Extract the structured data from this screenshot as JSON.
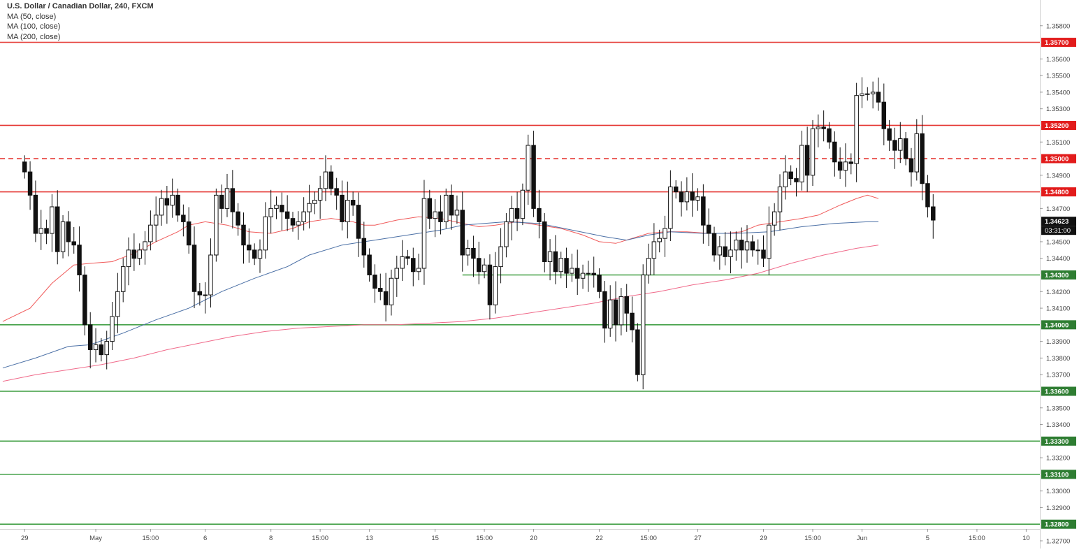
{
  "chart_data": {
    "type": "candlestick",
    "title": "U.S. Dollar / Canadian Dollar, 240, FXCM",
    "indicators": [
      {
        "label": "MA (50, close)",
        "color": "#f05a5a"
      },
      {
        "label": "MA (100, close)",
        "color": "#4a6fa5"
      },
      {
        "label": "MA (200, close)",
        "color": "#f06a8a"
      }
    ],
    "ylim": [
      1.327,
      1.359
    ],
    "y_ticks": [
      "1.35800",
      "1.35600",
      "1.35500",
      "1.35400",
      "1.35300",
      "1.35100",
      "1.34900",
      "1.34700",
      "1.34500",
      "1.34400",
      "1.34200",
      "1.34100",
      "1.33900",
      "1.33800",
      "1.33700",
      "1.33500",
      "1.33400",
      "1.33200",
      "1.33000",
      "1.32900",
      "1.32700"
    ],
    "y_tick_values": [
      1.358,
      1.356,
      1.355,
      1.354,
      1.353,
      1.351,
      1.349,
      1.347,
      1.345,
      1.344,
      1.342,
      1.341,
      1.339,
      1.338,
      1.337,
      1.335,
      1.334,
      1.332,
      1.33,
      1.329,
      1.327
    ],
    "x_ticks": [
      {
        "label": "29",
        "x": 0
      },
      {
        "label": "May",
        "x": 13
      },
      {
        "label": "15:00",
        "x": 23
      },
      {
        "label": "6",
        "x": 33
      },
      {
        "label": "8",
        "x": 45
      },
      {
        "label": "15:00",
        "x": 54
      },
      {
        "label": "13",
        "x": 63
      },
      {
        "label": "15",
        "x": 75
      },
      {
        "label": "15:00",
        "x": 84
      },
      {
        "label": "20",
        "x": 93
      },
      {
        "label": "22",
        "x": 105
      },
      {
        "label": "15:00",
        "x": 114
      },
      {
        "label": "27",
        "x": 123
      },
      {
        "label": "29",
        "x": 135
      },
      {
        "label": "15:00",
        "x": 144
      },
      {
        "label": "Jun",
        "x": 153
      },
      {
        "label": "5",
        "x": 165
      },
      {
        "label": "15:00",
        "x": 174
      },
      {
        "label": "10",
        "x": 183
      }
    ],
    "x_range": [
      -4.5,
      185.5
    ],
    "levels": [
      {
        "value": 1.357,
        "label": "1.35700",
        "color": "#e53935",
        "style": "solid"
      },
      {
        "value": 1.352,
        "label": "1.35200",
        "color": "#e53935",
        "style": "solid"
      },
      {
        "value": 1.35,
        "label": "1.35000",
        "color": "#e53935",
        "style": "dashed"
      },
      {
        "value": 1.348,
        "label": "1.34800",
        "color": "#e53935",
        "style": "solid"
      },
      {
        "value": 1.343,
        "label": "1.34300",
        "color": "#43a047",
        "style": "solid",
        "start_x": 80
      },
      {
        "value": 1.34,
        "label": "1.34000",
        "color": "#43a047",
        "style": "solid"
      },
      {
        "value": 1.336,
        "label": "1.33600",
        "color": "#43a047",
        "style": "solid"
      },
      {
        "value": 1.333,
        "label": "1.33300",
        "color": "#43a047",
        "style": "solid"
      },
      {
        "value": 1.331,
        "label": "1.33100",
        "color": "#43a047",
        "style": "solid"
      },
      {
        "value": 1.328,
        "label": "1.32800",
        "color": "#43a047",
        "style": "solid"
      }
    ],
    "last_price": {
      "value": 1.34623,
      "label": "1.34623",
      "countdown": "03:31:00"
    },
    "candles": [
      1.3492,
      1.3478,
      1.3455,
      1.3458,
      1.3455,
      1.3471,
      1.3444,
      1.3462,
      1.345,
      1.3448,
      1.343,
      1.34,
      1.3385,
      1.3388,
      1.3382,
      1.339,
      1.3405,
      1.342,
      1.3435,
      1.3445,
      1.344,
      1.3445,
      1.345,
      1.346,
      1.3466,
      1.3476,
      1.3472,
      1.3478,
      1.3466,
      1.3462,
      1.3448,
      1.342,
      1.3418,
      1.3418,
      1.3442,
      1.3478,
      1.347,
      1.3482,
      1.3468,
      1.346,
      1.3448,
      1.3445,
      1.344,
      1.3445,
      1.3465,
      1.347,
      1.3472,
      1.3468,
      1.3464,
      1.346,
      1.3462,
      1.3468,
      1.3473,
      1.3475,
      1.3482,
      1.3492,
      1.3482,
      1.3478,
      1.3462,
      1.3475,
      1.3472,
      1.3452,
      1.3442,
      1.343,
      1.3422,
      1.342,
      1.3412,
      1.3428,
      1.3434,
      1.3441,
      1.344,
      1.3432,
      1.3434,
      1.3476,
      1.3464,
      1.3468,
      1.3462,
      1.3478,
      1.3466,
      1.3469,
      1.3442,
      1.3446,
      1.344,
      1.3432,
      1.3436,
      1.3412,
      1.3435,
      1.3447,
      1.3462,
      1.347,
      1.3464,
      1.3481,
      1.3508,
      1.347,
      1.3462,
      1.3438,
      1.3444,
      1.3432,
      1.344,
      1.3431,
      1.3434,
      1.3428,
      1.3431,
      1.3431,
      1.343,
      1.342,
      1.3398,
      1.3415,
      1.34,
      1.3417,
      1.3407,
      1.3397,
      1.337,
      1.343,
      1.344,
      1.345,
      1.3452,
      1.3458,
      1.3483,
      1.348,
      1.3474,
      1.348,
      1.3475,
      1.3477,
      1.346,
      1.3455,
      1.3442,
      1.3447,
      1.3441,
      1.3445,
      1.3451,
      1.3445,
      1.345,
      1.3445,
      1.3445,
      1.344,
      1.346,
      1.3468,
      1.3483,
      1.3492,
      1.3488,
      1.3486,
      1.3508,
      1.349,
      1.3518,
      1.3519,
      1.3518,
      1.351,
      1.3498,
      1.3493,
      1.3498,
      1.3497,
      1.3538,
      1.3539,
      1.3539,
      1.354,
      1.3534,
      1.3518,
      1.3511,
      1.3505,
      1.3512,
      1.35,
      1.3492,
      1.3515,
      1.3485,
      1.3471,
      1.3463
    ],
    "ma_series": [
      {
        "name": "MA (50, close)",
        "color": "#f05a5a",
        "points": [
          [
            -4,
            1.3402
          ],
          [
            1,
            1.341
          ],
          [
            5,
            1.3425
          ],
          [
            9,
            1.3436
          ],
          [
            12,
            1.3437
          ],
          [
            16,
            1.3438
          ],
          [
            20,
            1.3443
          ],
          [
            24,
            1.345
          ],
          [
            28,
            1.3456
          ],
          [
            30,
            1.346
          ],
          [
            33,
            1.3462
          ],
          [
            37,
            1.346
          ],
          [
            41,
            1.3456
          ],
          [
            45,
            1.3455
          ],
          [
            49,
            1.3458
          ],
          [
            52,
            1.3462
          ],
          [
            56,
            1.3464
          ],
          [
            60,
            1.3462
          ],
          [
            62,
            1.346
          ],
          [
            64,
            1.346
          ],
          [
            68,
            1.3463
          ],
          [
            72,
            1.3465
          ],
          [
            76,
            1.3464
          ],
          [
            80,
            1.3461
          ],
          [
            83,
            1.3459
          ],
          [
            86,
            1.346
          ],
          [
            90,
            1.3462
          ],
          [
            94,
            1.346
          ],
          [
            98,
            1.3458
          ],
          [
            102,
            1.3454
          ],
          [
            105,
            1.345
          ],
          [
            108,
            1.3449
          ],
          [
            111,
            1.3452
          ],
          [
            114,
            1.3455
          ],
          [
            117,
            1.3456
          ],
          [
            121,
            1.3456
          ],
          [
            125,
            1.3455
          ],
          [
            128,
            1.3455
          ],
          [
            131,
            1.3456
          ],
          [
            134,
            1.346
          ],
          [
            138,
            1.3462
          ],
          [
            142,
            1.3464
          ],
          [
            145,
            1.3466
          ],
          [
            149,
            1.3472
          ],
          [
            152,
            1.3476
          ],
          [
            154,
            1.3478
          ],
          [
            156,
            1.3476
          ]
        ]
      },
      {
        "name": "MA (100, close)",
        "color": "#4a6fa5",
        "points": [
          [
            -4,
            1.3374
          ],
          [
            2,
            1.338
          ],
          [
            8,
            1.3387
          ],
          [
            12,
            1.3388
          ],
          [
            18,
            1.3395
          ],
          [
            24,
            1.3403
          ],
          [
            30,
            1.341
          ],
          [
            36,
            1.342
          ],
          [
            42,
            1.3428
          ],
          [
            48,
            1.3435
          ],
          [
            52,
            1.3442
          ],
          [
            58,
            1.3448
          ],
          [
            64,
            1.3451
          ],
          [
            70,
            1.3454
          ],
          [
            76,
            1.3457
          ],
          [
            80,
            1.346
          ],
          [
            84,
            1.3461
          ],
          [
            88,
            1.3462
          ],
          [
            94,
            1.3461
          ],
          [
            100,
            1.3457
          ],
          [
            106,
            1.3453
          ],
          [
            110,
            1.3451
          ],
          [
            114,
            1.3454
          ],
          [
            118,
            1.3456
          ],
          [
            124,
            1.3455
          ],
          [
            130,
            1.3455
          ],
          [
            136,
            1.3456
          ],
          [
            142,
            1.3459
          ],
          [
            148,
            1.3461
          ],
          [
            154,
            1.3462
          ],
          [
            156,
            1.3462
          ]
        ]
      },
      {
        "name": "MA (200, close)",
        "color": "#f06a8a",
        "points": [
          [
            -4,
            1.3366
          ],
          [
            2,
            1.337
          ],
          [
            8,
            1.3373
          ],
          [
            14,
            1.3376
          ],
          [
            20,
            1.338
          ],
          [
            26,
            1.3385
          ],
          [
            32,
            1.3389
          ],
          [
            38,
            1.3393
          ],
          [
            44,
            1.3396
          ],
          [
            50,
            1.3398
          ],
          [
            56,
            1.3399
          ],
          [
            62,
            1.34
          ],
          [
            68,
            1.34
          ],
          [
            74,
            1.3401
          ],
          [
            80,
            1.3402
          ],
          [
            86,
            1.3404
          ],
          [
            92,
            1.3407
          ],
          [
            98,
            1.341
          ],
          [
            104,
            1.3413
          ],
          [
            110,
            1.3417
          ],
          [
            116,
            1.342
          ],
          [
            122,
            1.3424
          ],
          [
            128,
            1.3427
          ],
          [
            134,
            1.3431
          ],
          [
            140,
            1.3437
          ],
          [
            146,
            1.3442
          ],
          [
            152,
            1.3446
          ],
          [
            156,
            1.3448
          ]
        ]
      }
    ]
  }
}
